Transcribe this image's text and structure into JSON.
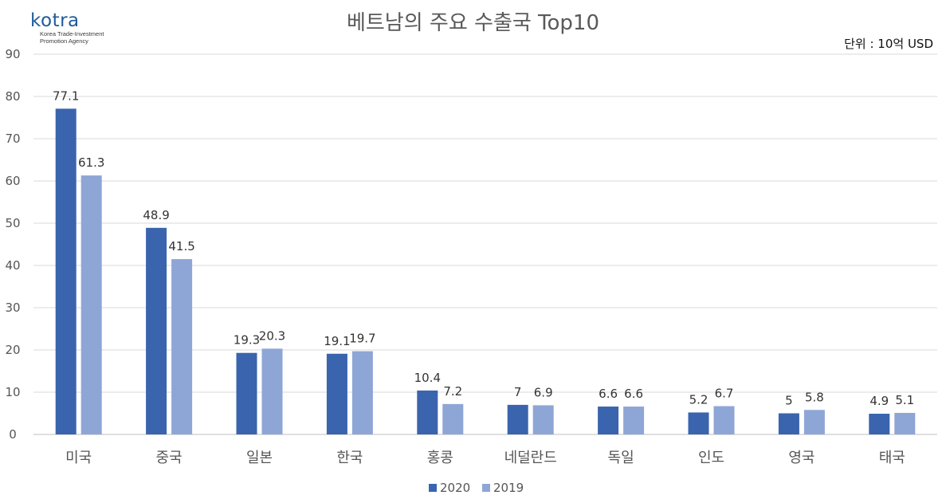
{
  "logo": {
    "name": "kotra",
    "tagline_1": "Korea Trade-Investment",
    "tagline_2": "Promotion Agency"
  },
  "unit_label": "단위 : 10억 USD",
  "chart_data": {
    "type": "bar",
    "title": "베트남의 주요 수출국 Top10",
    "categories": [
      "미국",
      "중국",
      "일본",
      "한국",
      "홍콩",
      "네덜란드",
      "독일",
      "인도",
      "영국",
      "태국"
    ],
    "series": [
      {
        "name": "2020",
        "color": "#3a64ad",
        "values": [
          77.1,
          48.9,
          19.3,
          19.1,
          10.4,
          7,
          6.6,
          5.2,
          5,
          4.9
        ]
      },
      {
        "name": "2019",
        "color": "#8ea6d6",
        "values": [
          61.3,
          41.5,
          20.3,
          19.7,
          7.2,
          6.9,
          6.6,
          6.7,
          5.8,
          5.1
        ]
      }
    ],
    "ylim": [
      0,
      90
    ],
    "yticks": [
      0,
      10,
      20,
      30,
      40,
      50,
      60,
      70,
      80,
      90
    ],
    "grid": true,
    "legend": "bottom-center",
    "xlabel": "",
    "ylabel": ""
  }
}
